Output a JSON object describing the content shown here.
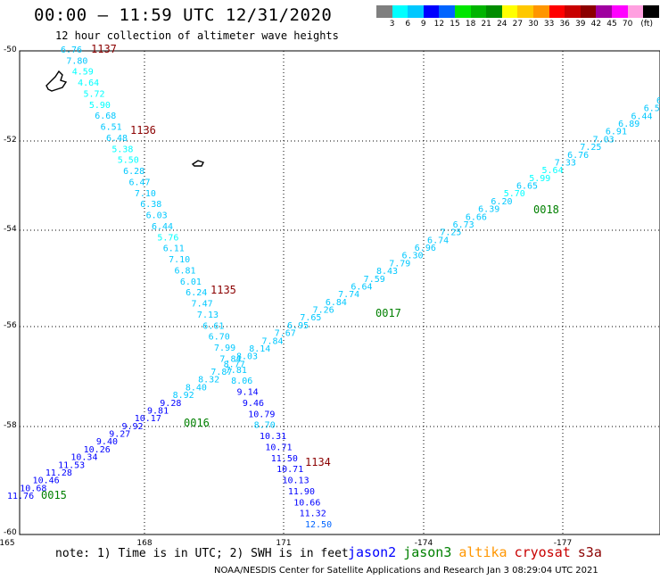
{
  "header": {
    "title": "00:00 – 11:59 UTC 12/31/2020",
    "subtitle": "12 hour collection of altimeter wave heights"
  },
  "colorbar": {
    "colors": [
      "#7f7f7f",
      "#00ffff",
      "#00c8ff",
      "#0000ff",
      "#0064ff",
      "#00e600",
      "#00b400",
      "#008c00",
      "#ffff00",
      "#ffc800",
      "#ff9600",
      "#ff0000",
      "#c80000",
      "#8c0000",
      "#a000a0",
      "#ff00ff",
      "#ffa0e0",
      "#000000"
    ],
    "labels": [
      "3",
      "6",
      "9",
      "12",
      "15",
      "18",
      "21",
      "24",
      "27",
      "30",
      "33",
      "36",
      "39",
      "42",
      "45",
      "70",
      "(ft)"
    ]
  },
  "axes": {
    "y_labels": [
      "-50",
      "-52",
      "-54",
      "-56",
      "-58",
      "-60"
    ],
    "x_labels": [
      "165",
      "168",
      "171",
      "-174",
      "-177"
    ]
  },
  "track_times": [
    {
      "text": "1137",
      "color": "#8b0000"
    },
    {
      "text": "1136",
      "color": "#8b0000"
    },
    {
      "text": "1135",
      "color": "#8b0000"
    },
    {
      "text": "1134",
      "color": "#8b0000"
    },
    {
      "text": "0018",
      "color": "#008000"
    },
    {
      "text": "0017",
      "color": "#008000"
    },
    {
      "text": "0016",
      "color": "#008000"
    },
    {
      "text": "0015",
      "color": "#008000"
    }
  ],
  "track_a_values": [
    "6.76",
    "7.80",
    "4.59",
    "4.64",
    "5.72",
    "5.90",
    "6.68",
    "6.51",
    "6.48",
    "5.38",
    "5.50",
    "6.28",
    "6.47",
    "7.10",
    "6.38",
    "6.03",
    "6.44",
    "5.76",
    "6.11",
    "7.10",
    "6.81",
    "6.01",
    "6.24",
    "7.47",
    "7.13",
    "6.61",
    "6.70",
    "7.99",
    "7.84",
    "7.81",
    "8.06",
    "9.14",
    "9.46",
    "10.79",
    "8.70",
    "10.31",
    "10.71",
    "11.50",
    "10.71",
    "10.13",
    "11.90",
    "10.66",
    "11.32",
    "12.50"
  ],
  "track_b_values": [
    "6.5",
    "6.52",
    "6.44",
    "6.89",
    "6.91",
    "7.03",
    "7.25",
    "6.76",
    "7.33",
    "5.64",
    "5.99",
    "6.65",
    "5.70",
    "6.20",
    "6.39",
    "6.66",
    "6.73",
    "7.25",
    "6.74",
    "6.96",
    "6.30",
    "7.79",
    "8.43",
    "7.59",
    "6.64",
    "7.74",
    "6.84",
    "7.26",
    "7.65",
    "6.95",
    "7.67",
    "7.84",
    "8.14",
    "8.03",
    "8.77",
    "7.87",
    "8.32",
    "8.40",
    "8.92",
    "9.28",
    "9.81",
    "10.17",
    "9.92",
    "9.27",
    "9.40",
    "10.26",
    "10.34",
    "11.53",
    "11.28",
    "10.46",
    "10.68",
    "11.76"
  ],
  "footer": {
    "note": "note: 1) Time is in UTC; 2) SWH is in feet",
    "satellites": [
      {
        "name": "jason2",
        "color": "#0000ff"
      },
      {
        "name": "jason3",
        "color": "#008000"
      },
      {
        "name": "altika",
        "color": "#ff9600"
      },
      {
        "name": "cryosat",
        "color": "#c80000"
      },
      {
        "name": "s3a",
        "color": "#8b0000"
      }
    ],
    "credit": "NOAA/NESDIS Center for Satellite Applications and Research    Jan  3 08:29:04 UTC 2021"
  }
}
